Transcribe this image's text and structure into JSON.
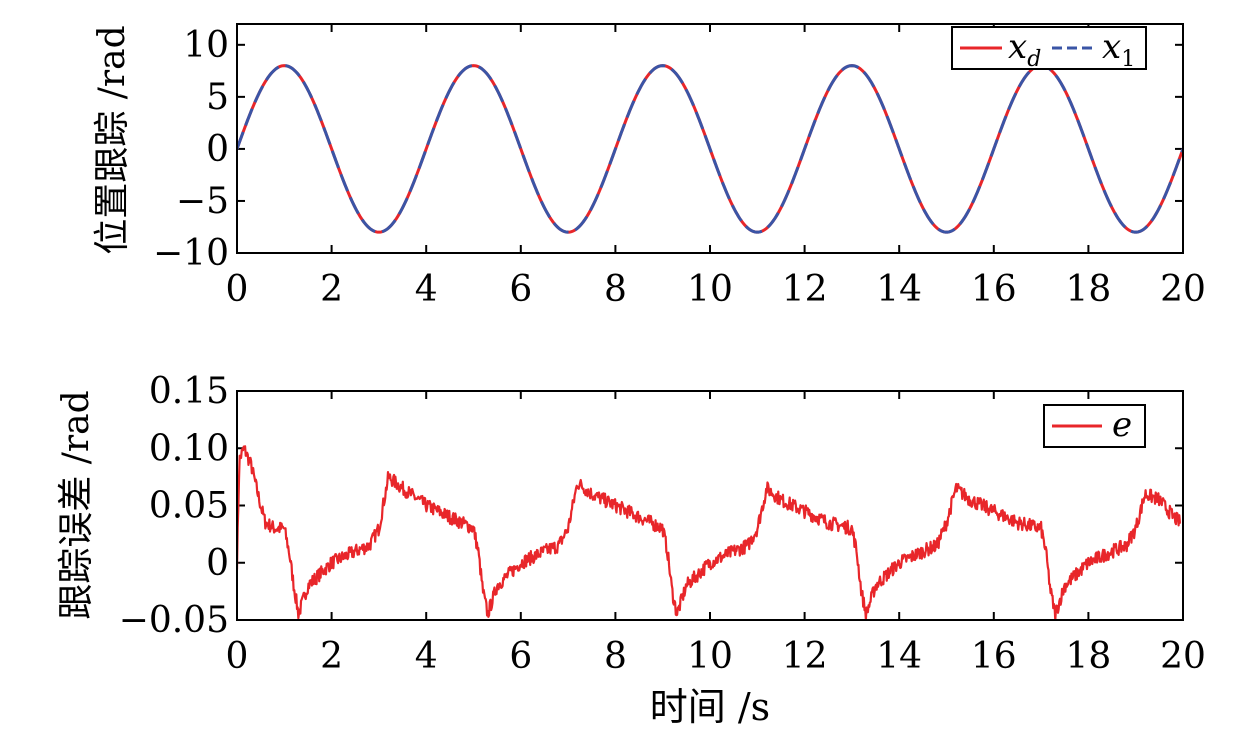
{
  "chart_data": [
    {
      "type": "line",
      "title": "",
      "xlabel": "",
      "ylabel": "位置跟踪 /rad",
      "xlim": [
        0,
        20
      ],
      "ylim": [
        -10,
        12
      ],
      "xticks": [
        "0",
        "2",
        "4",
        "6",
        "8",
        "10",
        "12",
        "14",
        "16",
        "18",
        "20"
      ],
      "yticks": [
        "10",
        "5",
        "0",
        "−5",
        "−10"
      ],
      "ytick_values": [
        10,
        5,
        0,
        -5,
        -10
      ],
      "legend": {
        "placement": "top-right",
        "items": [
          "x_d",
          "x_1"
        ]
      },
      "grid": false,
      "series": [
        {
          "name": "x_d",
          "function": "8*sin(pi*t/2)",
          "color": "#e8262a",
          "style": "solid"
        },
        {
          "name": "x_1",
          "function": "8*sin(pi*t/2)",
          "color": "#3a55a6",
          "style": "dashed"
        }
      ]
    },
    {
      "type": "line",
      "title": "",
      "xlabel": "时间 /s",
      "ylabel": "跟踪误差 /rad",
      "xlim": [
        0,
        20
      ],
      "ylim": [
        -0.05,
        0.15
      ],
      "xticks": [
        "0",
        "2",
        "4",
        "6",
        "8",
        "10",
        "12",
        "14",
        "16",
        "18",
        "20"
      ],
      "yticks": [
        "0.15",
        "0.10",
        "0.05",
        "0",
        "−0.05"
      ],
      "ytick_values": [
        0.15,
        0.1,
        0.05,
        0,
        -0.05
      ],
      "legend": {
        "placement": "top-right",
        "items": [
          "e"
        ]
      },
      "grid": false,
      "series": [
        {
          "name": "e",
          "color": "#e8262a",
          "style": "solid",
          "x": [
            0,
            0.05,
            0.15,
            0.3,
            0.5,
            0.6,
            0.8,
            1.0,
            1.1,
            1.2,
            1.3,
            1.5,
            2.0,
            2.5,
            2.8,
            3.0,
            3.2,
            3.5,
            4.0,
            4.5,
            5.0,
            5.1,
            5.2,
            5.3,
            5.5,
            6.0,
            6.5,
            6.8,
            7.0,
            7.2,
            7.5,
            8.0,
            8.5,
            9.0,
            9.1,
            9.2,
            9.3,
            9.5,
            10.0,
            10.5,
            10.8,
            11.0,
            11.2,
            11.5,
            12.0,
            12.5,
            13.0,
            13.1,
            13.2,
            13.3,
            13.5,
            14.0,
            14.5,
            14.8,
            15.0,
            15.2,
            15.5,
            16.0,
            16.5,
            17.0,
            17.1,
            17.2,
            17.3,
            17.5,
            18.0,
            18.5,
            18.8,
            19.0,
            19.2,
            19.5,
            19.8,
            19.95
          ],
          "y": [
            0,
            0.09,
            0.1,
            0.085,
            0.05,
            0.035,
            0.03,
            0.03,
            0.01,
            -0.02,
            -0.045,
            -0.02,
            0.0,
            0.01,
            0.015,
            0.03,
            0.075,
            0.065,
            0.05,
            0.04,
            0.03,
            0.01,
            -0.025,
            -0.045,
            -0.02,
            0.0,
            0.01,
            0.015,
            0.03,
            0.07,
            0.06,
            0.05,
            0.04,
            0.03,
            0.01,
            -0.025,
            -0.045,
            -0.02,
            0.0,
            0.01,
            0.015,
            0.03,
            0.065,
            0.055,
            0.045,
            0.035,
            0.03,
            0.01,
            -0.025,
            -0.045,
            -0.02,
            0.0,
            0.01,
            0.015,
            0.035,
            0.065,
            0.055,
            0.045,
            0.035,
            0.03,
            0.01,
            -0.025,
            -0.045,
            -0.02,
            0.0,
            0.01,
            0.015,
            0.03,
            0.06,
            0.055,
            0.04,
            0.035
          ],
          "noise_amplitude": 0.006
        }
      ]
    }
  ]
}
